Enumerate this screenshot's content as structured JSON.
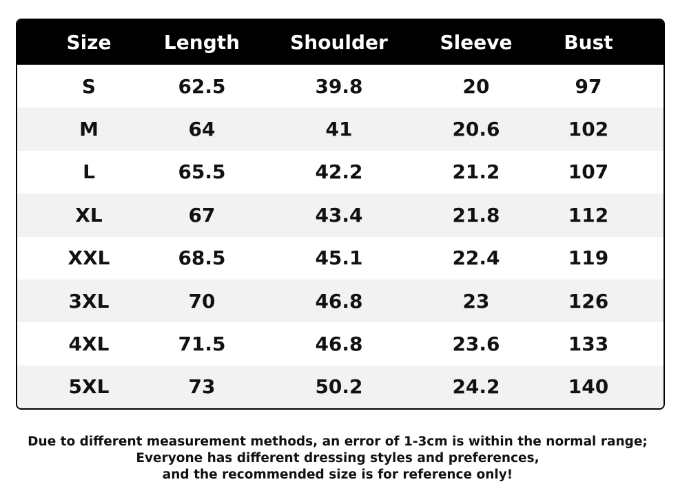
{
  "table": {
    "headers": [
      "Size",
      "Length",
      "Shoulder",
      "Sleeve",
      "Bust"
    ],
    "rows": [
      [
        "S",
        "62.5",
        "39.8",
        "20",
        "97"
      ],
      [
        "M",
        "64",
        "41",
        "20.6",
        "102"
      ],
      [
        "L",
        "65.5",
        "42.2",
        "21.2",
        "107"
      ],
      [
        "XL",
        "67",
        "43.4",
        "21.8",
        "112"
      ],
      [
        "XXL",
        "68.5",
        "45.1",
        "22.4",
        "119"
      ],
      [
        "3XL",
        "70",
        "46.8",
        "23",
        "126"
      ],
      [
        "4XL",
        "71.5",
        "46.8",
        "23.6",
        "133"
      ],
      [
        "5XL",
        "73",
        "50.2",
        "24.2",
        "140"
      ]
    ]
  },
  "notes": [
    "Due to different measurement methods, an error of 1-3cm is within the normal range;",
    "Everyone has different dressing styles and preferences,",
    "and the recommended size is for reference only!"
  ]
}
